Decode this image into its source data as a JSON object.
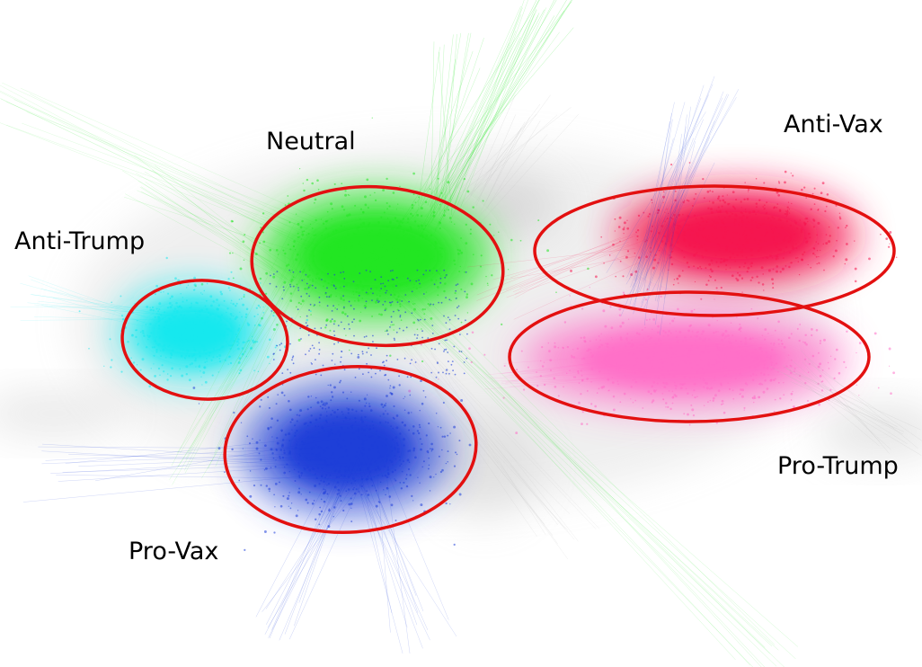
{
  "labels": {
    "neutral": "Neutral",
    "anti_vax": "Anti-Vax",
    "anti_trump": "Anti-Trump",
    "pro_trump": "Pro-Trump",
    "pro_vax": "Pro-Vax"
  },
  "colors": {
    "neutral": "#22e622",
    "anti_vax": "#f5154f",
    "anti_trump": "#17e8ee",
    "pro_trump": "#ff6fc8",
    "pro_vax": "#1d3ed8",
    "background_edges": "#b8b8b8",
    "outline": "#e31010"
  }
}
